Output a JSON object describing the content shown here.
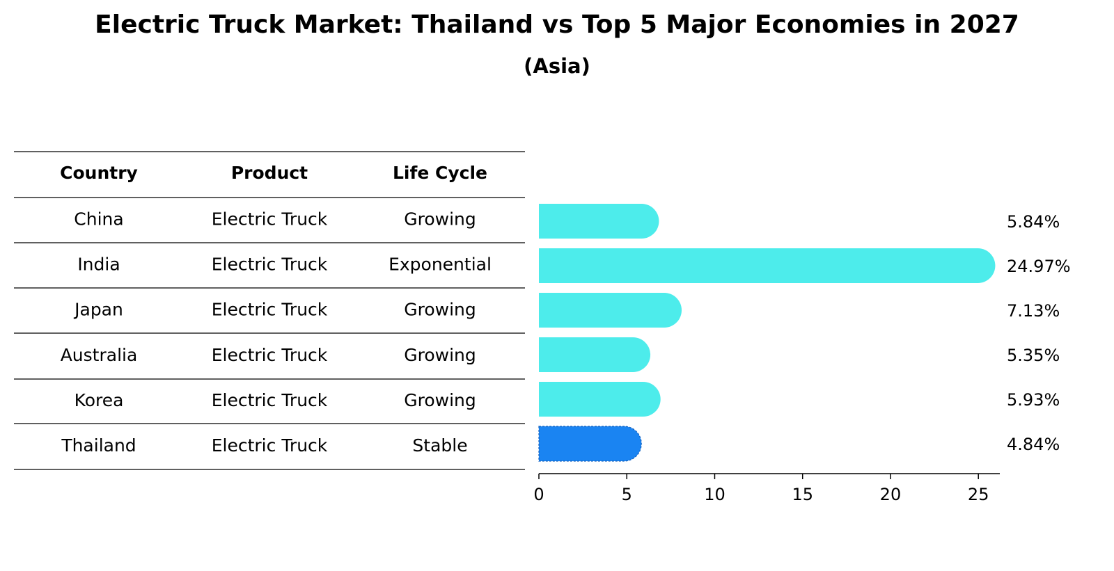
{
  "chart_data": {
    "type": "bar",
    "orientation": "horizontal",
    "title": "Electric Truck Market: Thailand vs Top 5 Major Economies in 2027",
    "subtitle": "(Asia)",
    "values": [
      5.84,
      24.97,
      7.13,
      5.35,
      5.93,
      4.84
    ],
    "value_labels": [
      "5.84%",
      "24.97%",
      "7.13%",
      "5.35%",
      "5.93%",
      "4.84%"
    ],
    "colors": [
      "#4deceb",
      "#4deceb",
      "#4deceb",
      "#4deceb",
      "#4deceb",
      "#1a84f2"
    ],
    "xlim": [
      0,
      26.22
    ],
    "xticks": [
      0,
      5,
      10,
      15,
      20,
      25
    ]
  },
  "table": {
    "columns": [
      "Country",
      "Product",
      "Life Cycle"
    ],
    "rows": [
      [
        "China",
        "Electric Truck",
        "Growing"
      ],
      [
        "India",
        "Electric Truck",
        "Exponential"
      ],
      [
        "Japan",
        "Electric Truck",
        "Growing"
      ],
      [
        "Australia",
        "Electric Truck",
        "Growing"
      ],
      [
        "Korea",
        "Electric Truck",
        "Growing"
      ],
      [
        "Thailand",
        "Electric Truck",
        "Stable"
      ]
    ],
    "row_colors": [
      "#808080",
      "#808080",
      "#808080",
      "#808080",
      "#808080",
      "#1f88c9"
    ]
  }
}
